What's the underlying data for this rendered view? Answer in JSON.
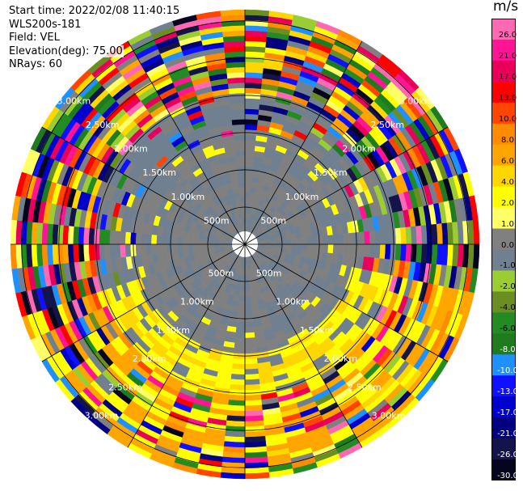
{
  "info": {
    "start_time": "Start time: 2022/02/08 11:40:15",
    "instrument": "WLS200s-181",
    "field": "Field: VEL",
    "elevation": "Elevation(deg): 75.00",
    "nrays": "NRays: 60"
  },
  "chart_data": {
    "type": "heatmap",
    "projection": "polar-ppi",
    "field": "VEL",
    "units": "m/s",
    "n_rays": 60,
    "range_rings_km": [
      0.5,
      1.0,
      1.5,
      2.0,
      2.5,
      3.0
    ],
    "range_ring_labels": [
      "500m",
      "1.00km",
      "1.50km",
      "2.00km",
      "2.50km",
      "3.00km"
    ],
    "max_range_km": 3.15,
    "colorbar": {
      "title": "m/s",
      "tick_labels": [
        "26.0",
        "21.0",
        "17.0",
        "13.0",
        "10.0",
        "8.0",
        "6.0",
        "4.0",
        "2.0",
        "1.0",
        "0.0",
        "-1.0",
        "-2.0",
        "-4.0",
        "-6.0",
        "-8.0",
        "-10.0",
        "-13.0",
        "-17.0",
        "-21.0",
        "-26.0",
        "-30.0"
      ],
      "colors": [
        "#ff69b4",
        "#ff1493",
        "#e8005a",
        "#ff0000",
        "#ff4500",
        "#ff8c00",
        "#ffa500",
        "#ffd700",
        "#ffff00",
        "#ffff66",
        "#808080",
        "#708090",
        "#9acd32",
        "#6b8e23",
        "#228b22",
        "#1e7b1e",
        "#1e90ff",
        "#1010ff",
        "#0000cd",
        "#000080",
        "#14144a",
        "#050520"
      ]
    }
  }
}
